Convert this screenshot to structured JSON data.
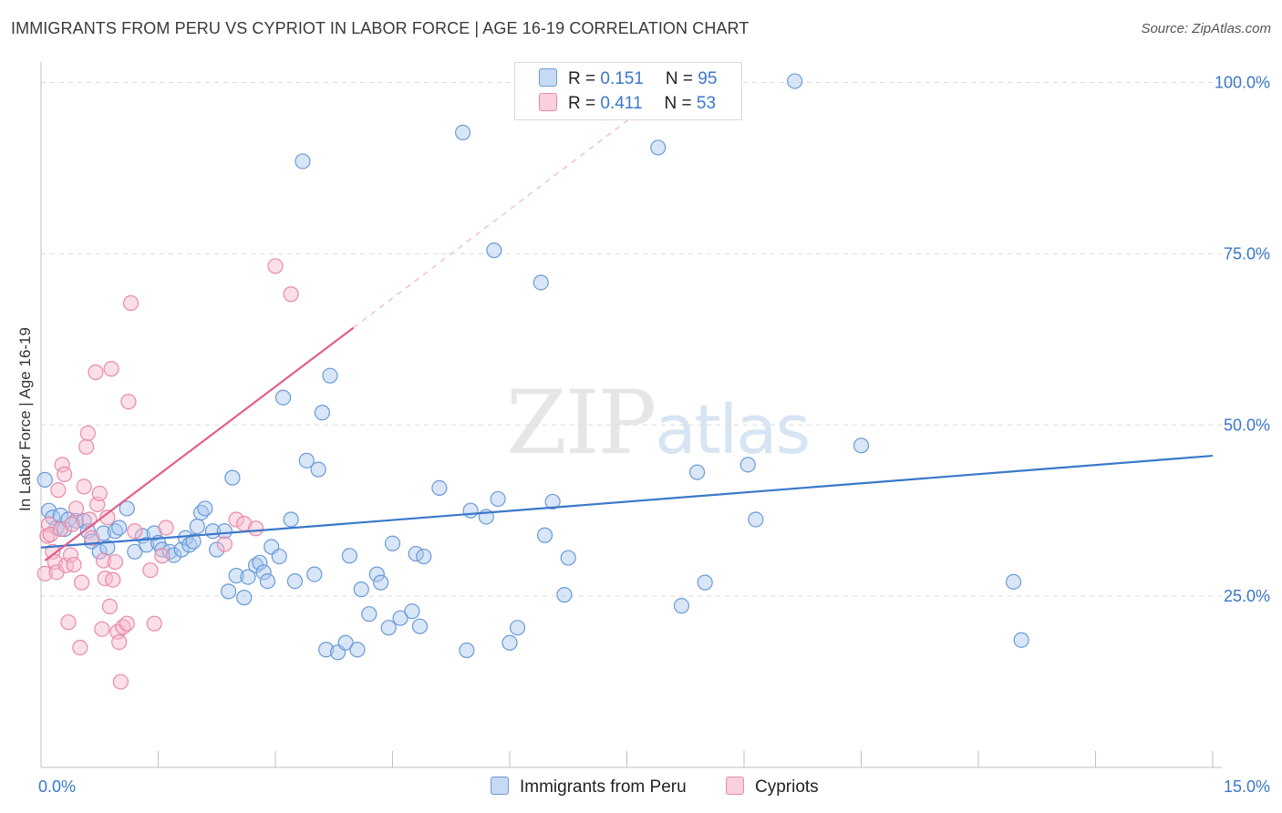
{
  "title": "IMMIGRANTS FROM PERU VS CYPRIOT IN LABOR FORCE | AGE 16-19 CORRELATION CHART",
  "source": "Source: ZipAtlas.com",
  "watermark": {
    "zip": "ZIP",
    "atlas": "atlas"
  },
  "colors": {
    "blue": "#3a78c9",
    "pink": "#e0608a",
    "blue_fill": "#a8c8f0",
    "pink_fill": "#f6b8cc"
  },
  "legend": {
    "series": [
      {
        "r_label": "R = ",
        "r_value": "0.151",
        "n_label": "N = ",
        "n_value": "95"
      },
      {
        "r_label": "R = ",
        "r_value": "0.411",
        "n_label": "N = ",
        "n_value": "53"
      }
    ]
  },
  "chart_data": {
    "type": "scatter",
    "title": "IMMIGRANTS FROM PERU VS CYPRIOT IN LABOR FORCE | AGE 16-19 CORRELATION CHART",
    "xlabel": "",
    "ylabel": "In Labor Force | Age 16-19",
    "xlim": [
      0,
      15
    ],
    "ylim": [
      0,
      103
    ],
    "x_tick_labels": [
      "0.0%",
      "15.0%"
    ],
    "y_ticks": [
      25,
      50,
      75,
      100
    ],
    "y_tick_labels": [
      "25.0%",
      "50.0%",
      "75.0%",
      "100.0%"
    ],
    "grid": true,
    "series": [
      {
        "name": "Immigrants from Peru",
        "color": "#3a78c9",
        "trend": {
          "x": [
            0,
            15
          ],
          "y": [
            32.1,
            45.5
          ]
        },
        "points": [
          [
            0.05,
            42
          ],
          [
            0.1,
            37.5
          ],
          [
            0.15,
            36.5
          ],
          [
            0.2,
            35
          ],
          [
            0.25,
            36.8
          ],
          [
            0.3,
            34.8
          ],
          [
            0.35,
            36.2
          ],
          [
            0.45,
            36
          ],
          [
            0.55,
            36
          ],
          [
            0.6,
            34.5
          ],
          [
            0.65,
            33
          ],
          [
            0.75,
            31.5
          ],
          [
            0.8,
            34.2
          ],
          [
            0.85,
            32.1
          ],
          [
            0.95,
            34.5
          ],
          [
            1.0,
            35
          ],
          [
            1.1,
            37.8
          ],
          [
            1.2,
            31.5
          ],
          [
            1.3,
            33.8
          ],
          [
            1.35,
            32.5
          ],
          [
            1.45,
            34.2
          ],
          [
            1.5,
            32.8
          ],
          [
            1.55,
            31.8
          ],
          [
            1.65,
            31.5
          ],
          [
            1.7,
            31
          ],
          [
            1.8,
            31.8
          ],
          [
            1.85,
            33.5
          ],
          [
            1.9,
            32.5
          ],
          [
            1.95,
            33
          ],
          [
            2.0,
            35.2
          ],
          [
            2.05,
            37.2
          ],
          [
            2.1,
            37.8
          ],
          [
            2.2,
            34.5
          ],
          [
            2.25,
            31.8
          ],
          [
            2.35,
            34.5
          ],
          [
            2.4,
            25.7
          ],
          [
            2.45,
            42.3
          ],
          [
            2.5,
            28
          ],
          [
            2.6,
            24.8
          ],
          [
            2.65,
            27.8
          ],
          [
            2.75,
            29.5
          ],
          [
            2.8,
            29.9
          ],
          [
            2.85,
            28.5
          ],
          [
            2.9,
            27.2
          ],
          [
            2.95,
            32.2
          ],
          [
            3.05,
            30.8
          ],
          [
            3.1,
            54
          ],
          [
            3.2,
            36.2
          ],
          [
            3.25,
            27.2
          ],
          [
            3.35,
            88.5
          ],
          [
            3.4,
            44.8
          ],
          [
            3.5,
            28.2
          ],
          [
            3.55,
            43.5
          ],
          [
            3.6,
            51.8
          ],
          [
            3.65,
            17.2
          ],
          [
            3.7,
            57.2
          ],
          [
            3.8,
            16.8
          ],
          [
            3.9,
            18.2
          ],
          [
            3.95,
            30.9
          ],
          [
            4.05,
            17.2
          ],
          [
            4.1,
            26
          ],
          [
            4.2,
            22.4
          ],
          [
            4.3,
            28.2
          ],
          [
            4.35,
            27
          ],
          [
            4.45,
            20.4
          ],
          [
            4.5,
            32.7
          ],
          [
            4.6,
            21.8
          ],
          [
            4.75,
            22.8
          ],
          [
            4.8,
            31.2
          ],
          [
            4.85,
            20.6
          ],
          [
            4.9,
            30.8
          ],
          [
            5.1,
            40.8
          ],
          [
            5.4,
            92.7
          ],
          [
            5.45,
            17.1
          ],
          [
            5.5,
            37.5
          ],
          [
            5.7,
            36.6
          ],
          [
            5.8,
            75.5
          ],
          [
            5.85,
            39.2
          ],
          [
            6.0,
            18.2
          ],
          [
            6.1,
            20.4
          ],
          [
            6.4,
            70.8
          ],
          [
            6.45,
            33.9
          ],
          [
            6.55,
            38.8
          ],
          [
            6.7,
            25.2
          ],
          [
            6.75,
            30.6
          ],
          [
            7.9,
            90.5
          ],
          [
            8.2,
            23.6
          ],
          [
            8.4,
            43.1
          ],
          [
            8.5,
            27
          ],
          [
            9.05,
            44.2
          ],
          [
            9.15,
            36.2
          ],
          [
            9.65,
            100.2
          ],
          [
            10.5,
            47
          ],
          [
            12.45,
            27.1
          ],
          [
            12.55,
            18.6
          ]
        ]
      },
      {
        "name": "Cypriots",
        "color": "#e0608a",
        "trend": {
          "x": [
            0.05,
            4.0
          ],
          "y": [
            30.2,
            64.2
          ]
        },
        "trend_extended": {
          "x": [
            4.0,
            7.8
          ],
          "y": [
            64.2,
            97.0
          ]
        },
        "points": [
          [
            0.05,
            28.3
          ],
          [
            0.08,
            33.8
          ],
          [
            0.1,
            35.5
          ],
          [
            0.12,
            34
          ],
          [
            0.15,
            31.5
          ],
          [
            0.18,
            30
          ],
          [
            0.2,
            28.5
          ],
          [
            0.22,
            40.5
          ],
          [
            0.25,
            34.8
          ],
          [
            0.27,
            44.2
          ],
          [
            0.3,
            42.8
          ],
          [
            0.32,
            29.5
          ],
          [
            0.35,
            21.2
          ],
          [
            0.38,
            31
          ],
          [
            0.4,
            35.5
          ],
          [
            0.42,
            29.6
          ],
          [
            0.45,
            37.8
          ],
          [
            0.5,
            17.5
          ],
          [
            0.52,
            27
          ],
          [
            0.55,
            41
          ],
          [
            0.58,
            46.8
          ],
          [
            0.6,
            48.8
          ],
          [
            0.62,
            36.2
          ],
          [
            0.65,
            33.5
          ],
          [
            0.7,
            57.7
          ],
          [
            0.72,
            38.4
          ],
          [
            0.75,
            40
          ],
          [
            0.78,
            20.2
          ],
          [
            0.8,
            30.2
          ],
          [
            0.82,
            27.6
          ],
          [
            0.85,
            36.5
          ],
          [
            0.88,
            23.5
          ],
          [
            0.9,
            58.2
          ],
          [
            0.92,
            27.4
          ],
          [
            0.95,
            30
          ],
          [
            0.98,
            19.8
          ],
          [
            1.0,
            18.3
          ],
          [
            1.02,
            12.5
          ],
          [
            1.05,
            20.5
          ],
          [
            1.1,
            21
          ],
          [
            1.12,
            53.4
          ],
          [
            1.15,
            67.8
          ],
          [
            1.2,
            34.5
          ],
          [
            1.4,
            28.8
          ],
          [
            1.45,
            21
          ],
          [
            1.55,
            30.9
          ],
          [
            1.6,
            35
          ],
          [
            2.35,
            32.6
          ],
          [
            2.5,
            36.2
          ],
          [
            2.6,
            35.6
          ],
          [
            2.75,
            34.9
          ],
          [
            3.0,
            73.2
          ],
          [
            3.2,
            69.1
          ]
        ]
      }
    ],
    "legend_placement": "top-center",
    "legend_entries": [
      "Immigrants from Peru",
      "Cypriots"
    ]
  }
}
